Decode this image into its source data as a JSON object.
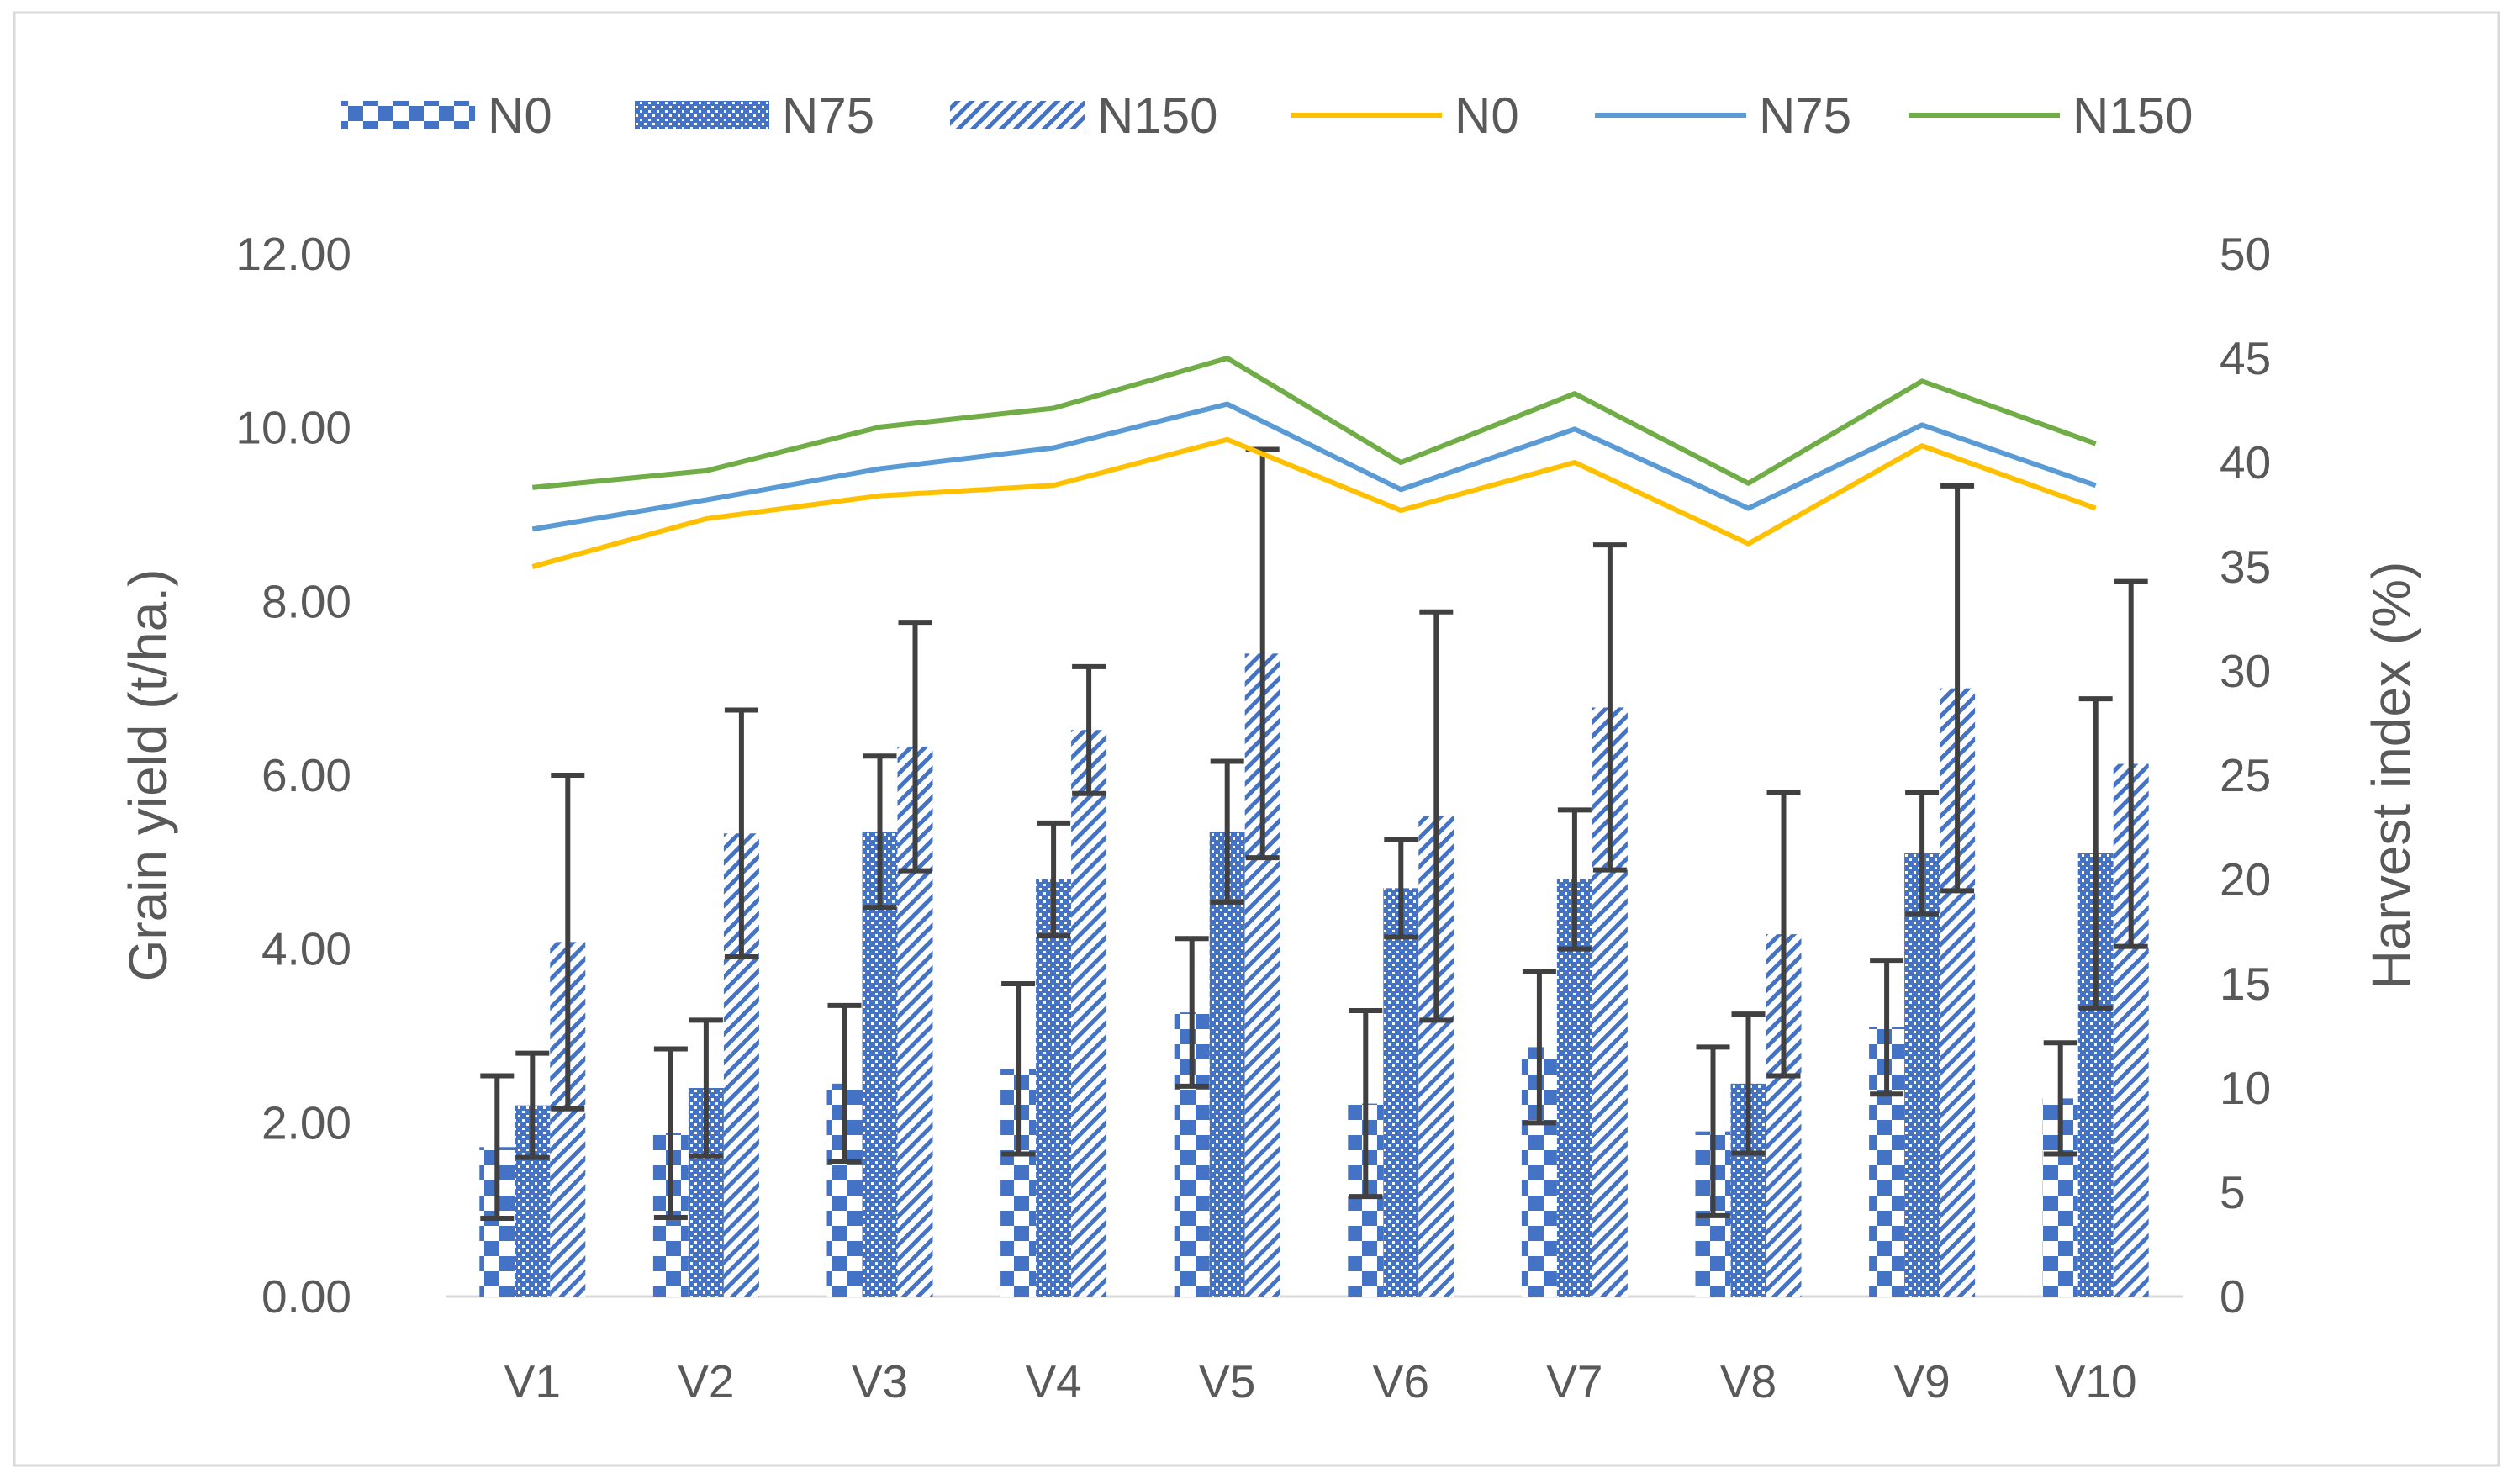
{
  "chart_data": {
    "type": "bar",
    "title": "",
    "categories": [
      "V1",
      "V2",
      "V3",
      "V4",
      "V5",
      "V6",
      "V7",
      "V8",
      "V9",
      "V10"
    ],
    "ylabel": "Grain yield (t/ha.)",
    "y2label": "Harvest index (%)",
    "ylim": [
      0,
      12
    ],
    "y2lim": [
      0,
      50
    ],
    "yticks": [
      "0.00",
      "2.00",
      "4.00",
      "6.00",
      "8.00",
      "10.00",
      "12.00"
    ],
    "y2ticks": [
      "0",
      "5",
      "10",
      "15",
      "20",
      "25",
      "30",
      "35",
      "40",
      "45",
      "50"
    ],
    "grid": false,
    "legend_position": "top",
    "legend": [
      "N0",
      "N75",
      "N150",
      "N0",
      "N75",
      "N150"
    ],
    "bar_series": [
      {
        "name": "N0",
        "pattern": "checker",
        "color": "#4472C4",
        "values": [
          1.72,
          1.88,
          2.45,
          2.62,
          3.27,
          2.22,
          2.87,
          1.9,
          3.1,
          2.28
        ],
        "errors": [
          0.82,
          0.97,
          0.9,
          0.98,
          0.85,
          1.07,
          0.87,
          0.97,
          0.77,
          0.64
        ]
      },
      {
        "name": "N75",
        "pattern": "dots",
        "color": "#4472C4",
        "values": [
          2.2,
          2.4,
          5.35,
          4.8,
          5.35,
          4.7,
          4.8,
          2.45,
          5.1,
          5.1
        ],
        "errors": [
          0.6,
          0.78,
          0.87,
          0.65,
          0.81,
          0.56,
          0.8,
          0.8,
          0.7,
          1.78
        ]
      },
      {
        "name": "N150",
        "pattern": "diagonal",
        "color": "#4472C4",
        "values": [
          4.08,
          5.33,
          6.33,
          6.52,
          7.4,
          5.53,
          6.78,
          4.17,
          7.0,
          6.13
        ],
        "errors": [
          1.92,
          1.42,
          1.43,
          0.73,
          2.35,
          2.35,
          1.87,
          1.63,
          2.33,
          2.1
        ]
      }
    ],
    "line_series": [
      {
        "name": "N0",
        "color": "#FFC000",
        "values": [
          35.0,
          37.3,
          38.4,
          38.9,
          41.1,
          37.7,
          40.0,
          36.1,
          40.8,
          37.8
        ]
      },
      {
        "name": "N75",
        "color": "#5B9BD5",
        "values": [
          36.8,
          38.2,
          39.7,
          40.7,
          42.8,
          38.7,
          41.6,
          37.8,
          41.8,
          38.9
        ]
      },
      {
        "name": "N150",
        "color": "#70AD47",
        "values": [
          38.8,
          39.6,
          41.7,
          42.6,
          45.0,
          40.0,
          43.3,
          39.0,
          43.9,
          40.9
        ]
      }
    ]
  }
}
